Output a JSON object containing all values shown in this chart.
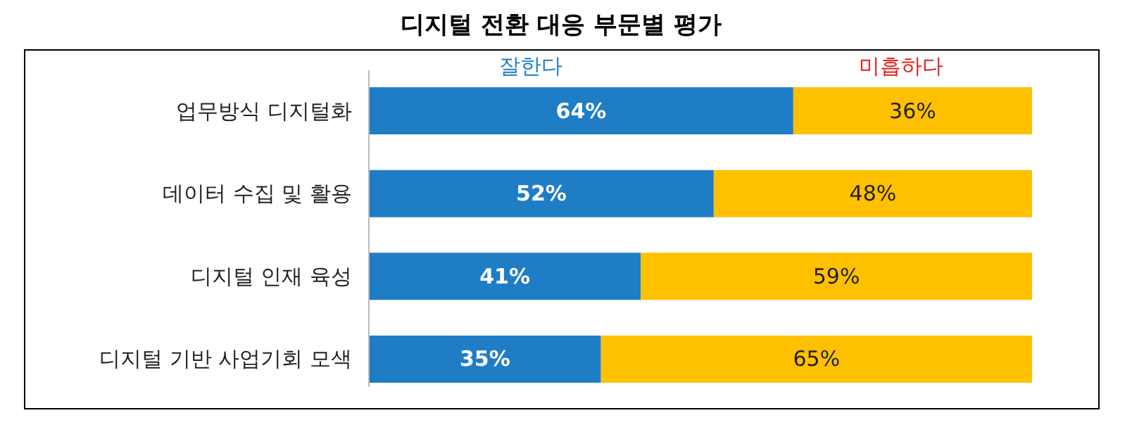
{
  "chart_data": {
    "type": "bar",
    "orientation": "horizontal",
    "stacked": true,
    "title": "디지털 전환 대응 부문별 평가",
    "categories": [
      "업무방식 디지털화",
      "데이터 수집 및 활용",
      "디지털 인재 육성",
      "디지털 기반 사업기회 모색"
    ],
    "series": [
      {
        "name": "잘한다",
        "color": "#1f7dc6",
        "values": [
          64,
          52,
          41,
          35
        ],
        "value_labels": [
          "64%",
          "52%",
          "41%",
          "35%"
        ]
      },
      {
        "name": "미흡하다",
        "color": "#ffc000",
        "values": [
          36,
          48,
          59,
          65
        ],
        "value_labels": [
          "36%",
          "48%",
          "59%",
          "65%"
        ]
      }
    ],
    "legend": "top"
  }
}
